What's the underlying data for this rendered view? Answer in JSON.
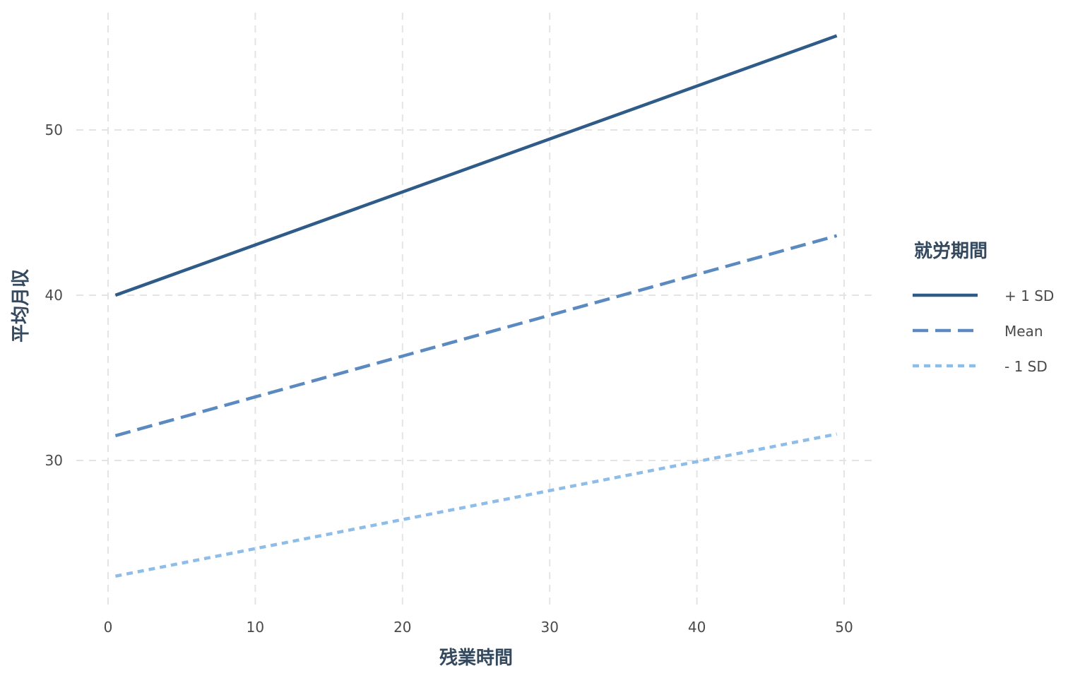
{
  "chart_data": {
    "type": "line",
    "title": "",
    "xlabel": "残業時間",
    "ylabel": "平均月収",
    "xlim": [
      0,
      50
    ],
    "ylim": [
      22,
      58
    ],
    "xticks": [
      0,
      10,
      20,
      30,
      40,
      50
    ],
    "yticks": [
      30,
      40,
      50
    ],
    "grid": true,
    "legend": {
      "title": "就労期間",
      "placement": "right"
    },
    "series": [
      {
        "name": "+ 1 SD",
        "color": "#2e5b88",
        "dash": "solid",
        "x": [
          0.5,
          49.5
        ],
        "y": [
          40.0,
          55.7
        ]
      },
      {
        "name": "Mean",
        "color": "#5b8ac0",
        "dash": "dashed",
        "x": [
          0.5,
          49.5
        ],
        "y": [
          31.5,
          43.6
        ]
      },
      {
        "name": "- 1 SD",
        "color": "#8dbde8",
        "dash": "dotted",
        "x": [
          0.5,
          49.5
        ],
        "y": [
          23.0,
          31.6
        ]
      }
    ]
  }
}
